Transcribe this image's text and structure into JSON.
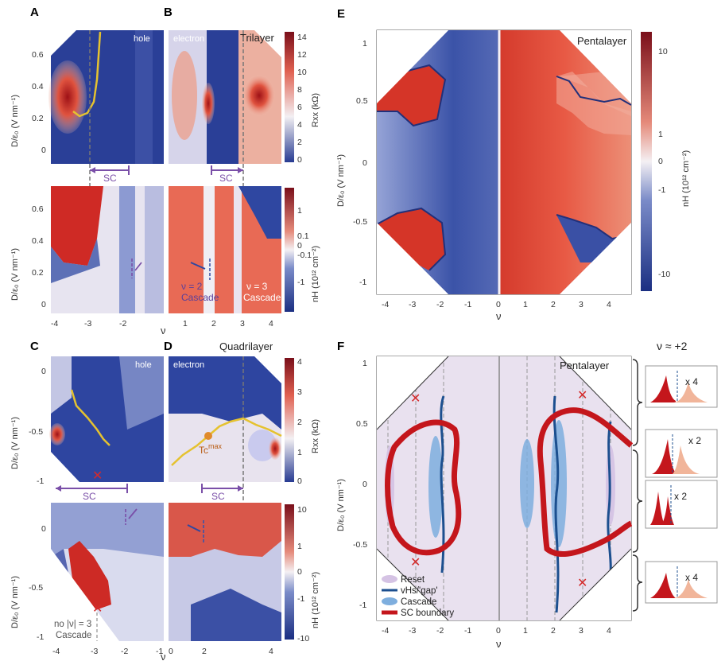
{
  "panels": {
    "A": {
      "label": "A",
      "tag": "hole"
    },
    "B": {
      "label": "B",
      "tag": "electron",
      "title": "Trilayer"
    },
    "C": {
      "label": "C",
      "tag": "hole"
    },
    "D": {
      "label": "D",
      "tag": "electron",
      "title": "Quadrilayer"
    },
    "E": {
      "label": "E",
      "title": "Pentalayer"
    },
    "F": {
      "label": "F",
      "title": "Pentalayer"
    }
  },
  "axes": {
    "ylabel": "D/ε₀ (V nm⁻¹)",
    "xlabel": "ν",
    "trilayer_x_ticks": [
      "-4",
      "-3",
      "-2",
      "1",
      "2",
      "3",
      "4"
    ],
    "trilayer_y_ticks": [
      "0",
      "0.2",
      "0.4",
      "0.6"
    ],
    "quad_x_ticks": [
      "-4",
      "-3",
      "-2",
      "-1",
      "0",
      "2",
      "4"
    ],
    "quad_y_ticks": [
      "-1",
      "-0.5",
      "0"
    ],
    "penta_x_ticks": [
      "-4",
      "-3",
      "-2",
      "-1",
      "0",
      "1",
      "2",
      "3",
      "4"
    ],
    "penta_y_ticks": [
      "1",
      "0.5",
      "0",
      "-0.5",
      "-1"
    ]
  },
  "colorbars": {
    "rxx_trilayer": {
      "label": "Rxx (kΩ)",
      "ticks": [
        "14",
        "12",
        "10",
        "8",
        "6",
        "4",
        "2",
        "0"
      ]
    },
    "nh_trilayer": {
      "label": "nH (10¹² cm⁻²)",
      "ticks": [
        "1",
        "0.1",
        "0",
        "-0.1",
        "-1"
      ]
    },
    "rxx_quad": {
      "label": "Rxx (kΩ)",
      "ticks": [
        "4",
        "3",
        "2",
        "1",
        "0"
      ]
    },
    "nh_quad": {
      "label": "nH (10¹² cm⁻²)",
      "ticks": [
        "10",
        "1",
        "0",
        "-1",
        "-10"
      ]
    },
    "nh_penta": {
      "label": "nH (10¹² cm⁻²)",
      "ticks": [
        "10",
        "1",
        "0",
        "-1",
        "-10"
      ]
    }
  },
  "annotations": {
    "sc": "SC",
    "nu2": "ν = 2",
    "cascade": "Cascade",
    "nu3": "ν = 3",
    "tc_max": "Tc",
    "tc_sup": "max",
    "no_nu3": "no |ν| = 3",
    "cross": "✕"
  },
  "legend_F": {
    "items": [
      {
        "label": "Reset",
        "color": "#d5c3e4"
      },
      {
        "label": "vHs/'gap'",
        "color": "#1c4f8f"
      },
      {
        "label": "Cascade",
        "color": "#7eaede"
      },
      {
        "label": "SC boundary",
        "color": "#c4161c"
      }
    ]
  },
  "side_panel": {
    "title": "ν ≈ +2",
    "factors": [
      "x 4",
      "x 2",
      "x 2",
      "x 4"
    ]
  },
  "colors": {
    "red": "#c8201f",
    "blue": "#263d95",
    "white": "#f5f1f2",
    "lavender": "#e9e1ef"
  }
}
